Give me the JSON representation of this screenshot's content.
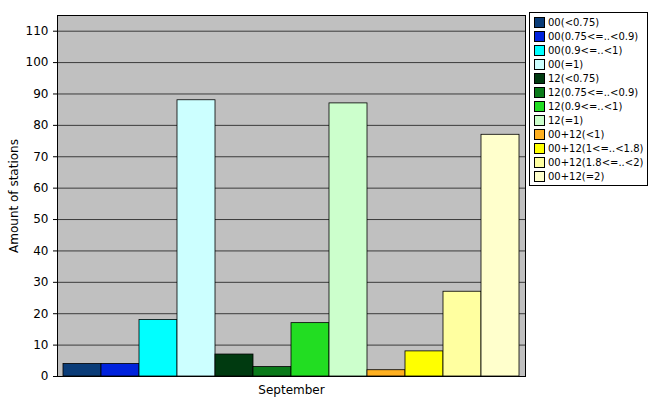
{
  "chart_data": {
    "type": "bar",
    "categories": [
      "September"
    ],
    "ylabel": "Amount of stations",
    "ylim": [
      0,
      115
    ],
    "yticks": [
      0,
      10,
      20,
      30,
      40,
      50,
      60,
      70,
      80,
      90,
      100,
      110
    ],
    "grid": true,
    "legend": "top-right",
    "series": [
      {
        "name": "00(<0.75)",
        "color": "#0a3c78",
        "values": [
          4
        ]
      },
      {
        "name": "00(0.75<=..<0.9)",
        "color": "#0022dd",
        "values": [
          4
        ]
      },
      {
        "name": "00(0.9<=..<1)",
        "color": "#00ffff",
        "values": [
          18
        ]
      },
      {
        "name": "00(=1)",
        "color": "#ccffff",
        "values": [
          88
        ]
      },
      {
        "name": "12(<0.75)",
        "color": "#003a10",
        "values": [
          7
        ]
      },
      {
        "name": "12(0.75<=..<0.9)",
        "color": "#0a7a1a",
        "values": [
          3
        ]
      },
      {
        "name": "12(0.9<=..<1)",
        "color": "#22dd22",
        "values": [
          17
        ]
      },
      {
        "name": "12(=1)",
        "color": "#ccffcc",
        "values": [
          87
        ]
      },
      {
        "name": "00+12(<1)",
        "color": "#ffb020",
        "values": [
          2
        ]
      },
      {
        "name": "00+12(1<=..<1.8)",
        "color": "#ffff00",
        "values": [
          8
        ]
      },
      {
        "name": "00+12(1.8<=..<2)",
        "color": "#ffffa0",
        "values": [
          27
        ]
      },
      {
        "name": "00+12(=2)",
        "color": "#ffffcc",
        "values": [
          77
        ]
      }
    ]
  }
}
